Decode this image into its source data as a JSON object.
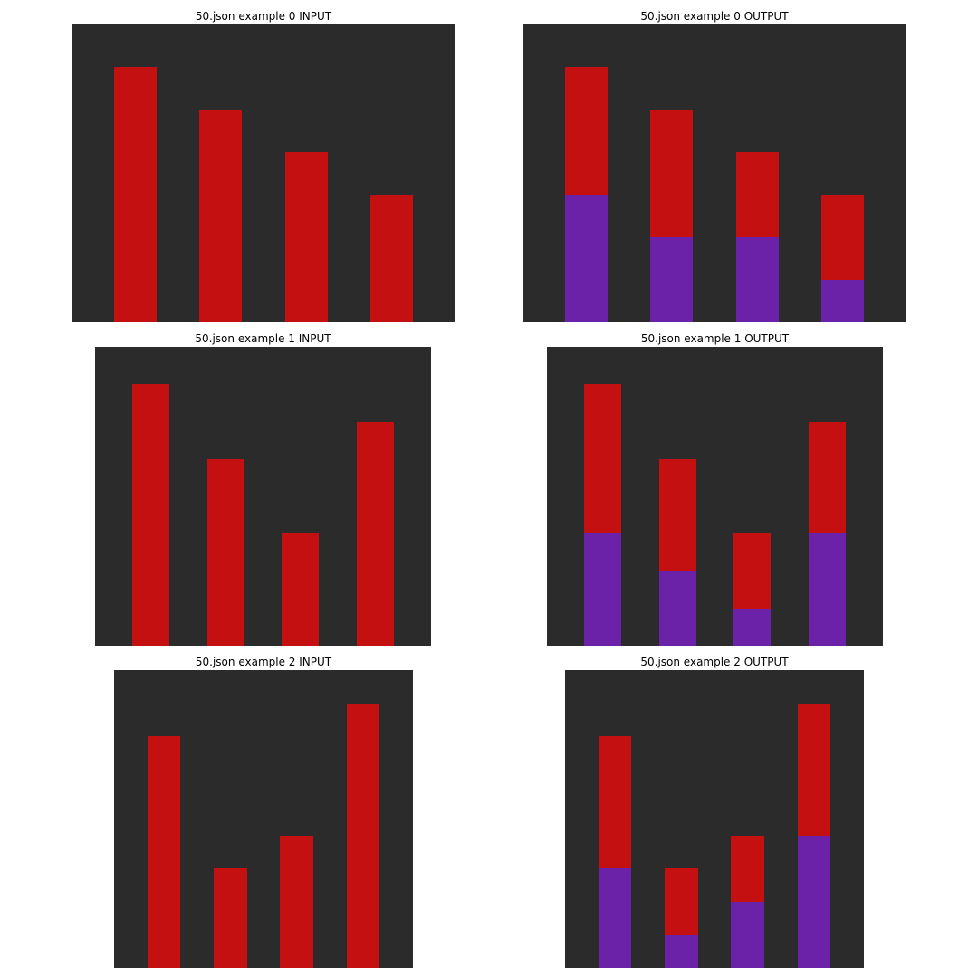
{
  "colors": {
    "background": "#2b2b2b",
    "bar": "#c41010",
    "fill": "#6b21a8"
  },
  "panels": [
    {
      "title": "50.json example 0 INPUT",
      "rows": 7,
      "cols": 9,
      "bars": [
        {
          "col": 1,
          "height": 6
        },
        {
          "col": 3,
          "height": 5
        },
        {
          "col": 5,
          "height": 4
        },
        {
          "col": 7,
          "height": 3
        }
      ]
    },
    {
      "title": "50.json example 0 OUTPUT",
      "rows": 7,
      "cols": 9,
      "bars": [
        {
          "col": 1,
          "height": 6,
          "fill": 3
        },
        {
          "col": 3,
          "height": 5,
          "fill": 2
        },
        {
          "col": 5,
          "height": 4,
          "fill": 2
        },
        {
          "col": 7,
          "height": 3,
          "fill": 1
        }
      ]
    },
    {
      "title": "50.json example 1 INPUT",
      "rows": 8,
      "cols": 9,
      "bars": [
        {
          "col": 1,
          "height": 7
        },
        {
          "col": 3,
          "height": 5
        },
        {
          "col": 5,
          "height": 3
        },
        {
          "col": 7,
          "height": 6
        }
      ]
    },
    {
      "title": "50.json example 1 OUTPUT",
      "rows": 8,
      "cols": 9,
      "bars": [
        {
          "col": 1,
          "height": 7,
          "fill": 3
        },
        {
          "col": 3,
          "height": 5,
          "fill": 2
        },
        {
          "col": 5,
          "height": 3,
          "fill": 1
        },
        {
          "col": 7,
          "height": 6,
          "fill": 3
        }
      ]
    },
    {
      "title": "50.json example 2 INPUT",
      "rows": 9,
      "cols": 9,
      "bars": [
        {
          "col": 1,
          "height": 7
        },
        {
          "col": 3,
          "height": 3
        },
        {
          "col": 5,
          "height": 4
        },
        {
          "col": 7,
          "height": 8
        }
      ]
    },
    {
      "title": "50.json example 2 OUTPUT",
      "rows": 9,
      "cols": 9,
      "bars": [
        {
          "col": 1,
          "height": 7,
          "fill": 3
        },
        {
          "col": 3,
          "height": 3,
          "fill": 1
        },
        {
          "col": 5,
          "height": 4,
          "fill": 2
        },
        {
          "col": 7,
          "height": 8,
          "fill": 4
        }
      ]
    }
  ]
}
